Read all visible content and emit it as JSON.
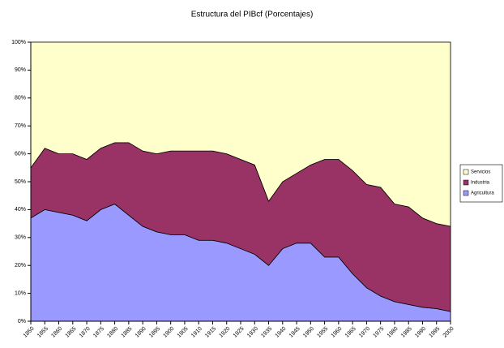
{
  "chart_data": {
    "type": "stacked_area",
    "title": "Estructura del PIBcf (Porcentajes)",
    "x": [
      1850,
      1855,
      1860,
      1865,
      1870,
      1875,
      1880,
      1885,
      1890,
      1895,
      1900,
      1905,
      1910,
      1915,
      1920,
      1925,
      1930,
      1935,
      1940,
      1945,
      1950,
      1955,
      1960,
      1965,
      1970,
      1975,
      1980,
      1985,
      1990,
      1995,
      2000
    ],
    "series": [
      {
        "name": "Agricultura",
        "color": "#9999ff",
        "values": [
          37,
          40,
          39,
          38,
          36,
          40,
          42,
          38,
          34,
          32,
          31,
          31,
          29,
          29,
          28,
          26,
          24,
          20,
          26,
          28,
          28,
          23,
          23,
          17,
          12,
          9,
          7,
          6,
          5,
          4.5,
          3.5
        ]
      },
      {
        "name": "Industria",
        "color": "#993366",
        "values": [
          18,
          22,
          21,
          22,
          22,
          22,
          22,
          26,
          27,
          28,
          30,
          30,
          32,
          32,
          32,
          32,
          32,
          23,
          24,
          25,
          28,
          35,
          35,
          37,
          37,
          39,
          35,
          35,
          32,
          30.5,
          30.5
        ]
      },
      {
        "name": "Servicios",
        "color": "#ffffcc",
        "values": [
          45,
          38,
          40,
          40,
          42,
          38,
          36,
          36,
          39,
          40,
          39,
          39,
          39,
          39,
          40,
          42,
          44,
          57,
          50,
          47,
          44,
          42,
          42,
          46,
          51,
          52,
          58,
          59,
          63,
          65,
          66
        ]
      }
    ],
    "xlim": [
      1850,
      2000
    ],
    "xticks": [
      1850,
      1855,
      1860,
      1865,
      1870,
      1875,
      1880,
      1885,
      1890,
      1895,
      1900,
      1905,
      1910,
      1915,
      1920,
      1925,
      1930,
      1935,
      1940,
      1945,
      1950,
      1955,
      1960,
      1965,
      1970,
      1975,
      1980,
      1985,
      1990,
      1995,
      2000
    ],
    "ylim": [
      0,
      100
    ],
    "yticks": [
      {
        "value": 0,
        "label": "0%"
      },
      {
        "value": 10,
        "label": "10%"
      },
      {
        "value": 20,
        "label": "20%"
      },
      {
        "value": 30,
        "label": "30%"
      },
      {
        "value": 40,
        "label": "40%"
      },
      {
        "value": 50,
        "label": "50%"
      },
      {
        "value": 60,
        "label": "60%"
      },
      {
        "value": 70,
        "label": "70%"
      },
      {
        "value": 80,
        "label": "80%"
      },
      {
        "value": 90,
        "label": "90%"
      },
      {
        "value": 100,
        "label": "100%"
      }
    ],
    "legend": "right"
  }
}
